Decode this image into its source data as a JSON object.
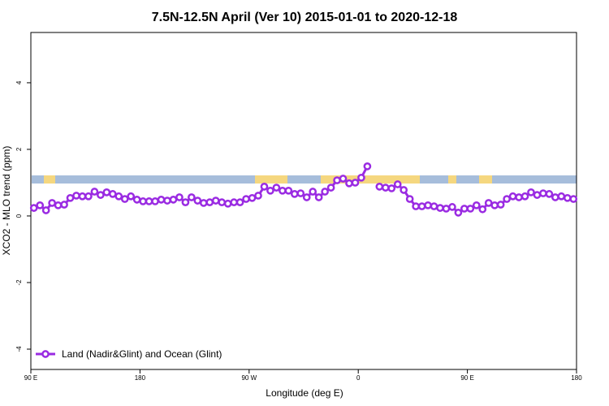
{
  "chart_data": {
    "type": "line",
    "title": "7.5N-12.5N April (Ver 10)   2015-01-01 to 2020-12-18",
    "x_label": "Longitude (deg E)",
    "y_label": "XCO2 - MLO trend (ppm)",
    "xlim": [
      90,
      540
    ],
    "ylim": [
      -4.61,
      5.51
    ],
    "xticks": [
      {
        "value": 90,
        "label": "90 E"
      },
      {
        "value": 180,
        "label": "180"
      },
      {
        "value": 270,
        "label": "90 W"
      },
      {
        "value": 360,
        "label": "0"
      },
      {
        "value": 450,
        "label": "90 E"
      },
      {
        "value": 540,
        "label": "180"
      }
    ],
    "yticks": [
      -4,
      -2,
      0,
      2,
      4
    ],
    "legend_position": "bottom-left",
    "x": [
      92.5,
      97.5,
      102.5,
      107.5,
      112.5,
      117.5,
      122.5,
      127.5,
      132.5,
      137.5,
      142.5,
      147.5,
      152.5,
      157.5,
      162.5,
      167.5,
      172.5,
      177.5,
      182.5,
      187.5,
      192.5,
      197.5,
      202.5,
      207.5,
      212.5,
      217.5,
      222.5,
      227.5,
      232.5,
      237.5,
      242.5,
      247.5,
      252.5,
      257.5,
      262.5,
      267.5,
      272.5,
      277.5,
      282.5,
      287.5,
      292.5,
      297.5,
      302.5,
      307.5,
      312.5,
      317.5,
      322.5,
      327.5,
      332.5,
      337.5,
      342.5,
      347.5,
      352.5,
      357.5,
      362.5,
      367.5,
      372.5,
      377.5,
      382.5,
      387.5,
      392.5,
      397.5,
      402.5,
      407.5,
      412.5,
      417.5,
      422.5,
      427.5,
      432.5,
      437.5,
      442.5,
      447.5,
      452.5,
      457.5,
      462.5,
      467.5,
      472.5,
      477.5,
      482.5,
      487.5,
      492.5,
      497.5,
      502.5,
      507.5,
      512.5,
      517.5,
      522.5,
      527.5,
      532.5,
      537.5
    ],
    "series": [
      {
        "name": "Land (Nadir&Glint) and Ocean (Glint)",
        "color": "#9a2be2",
        "values": [
          0.24,
          0.32,
          0.17,
          0.39,
          0.32,
          0.34,
          0.54,
          0.61,
          0.59,
          0.59,
          0.73,
          0.63,
          0.71,
          0.66,
          0.59,
          0.51,
          0.59,
          0.49,
          0.44,
          0.44,
          0.44,
          0.49,
          0.46,
          0.49,
          0.56,
          0.41,
          0.56,
          0.46,
          0.39,
          0.41,
          0.46,
          0.41,
          0.37,
          0.41,
          0.41,
          0.51,
          0.54,
          0.61,
          0.88,
          0.76,
          0.85,
          0.76,
          0.76,
          0.66,
          0.68,
          0.56,
          0.73,
          0.56,
          0.73,
          0.85,
          1.07,
          1.12,
          0.98,
          1.0,
          1.15,
          1.49,
          null,
          0.88,
          0.85,
          0.83,
          0.95,
          0.78,
          0.51,
          0.29,
          0.29,
          0.32,
          0.29,
          0.24,
          0.22,
          0.27,
          0.1,
          0.22,
          0.22,
          0.32,
          0.2,
          0.39,
          0.32,
          0.34,
          0.51,
          0.59,
          0.56,
          0.59,
          0.71,
          0.63,
          0.68,
          0.66,
          0.56,
          0.59,
          0.54,
          0.51
        ]
      }
    ]
  }
}
